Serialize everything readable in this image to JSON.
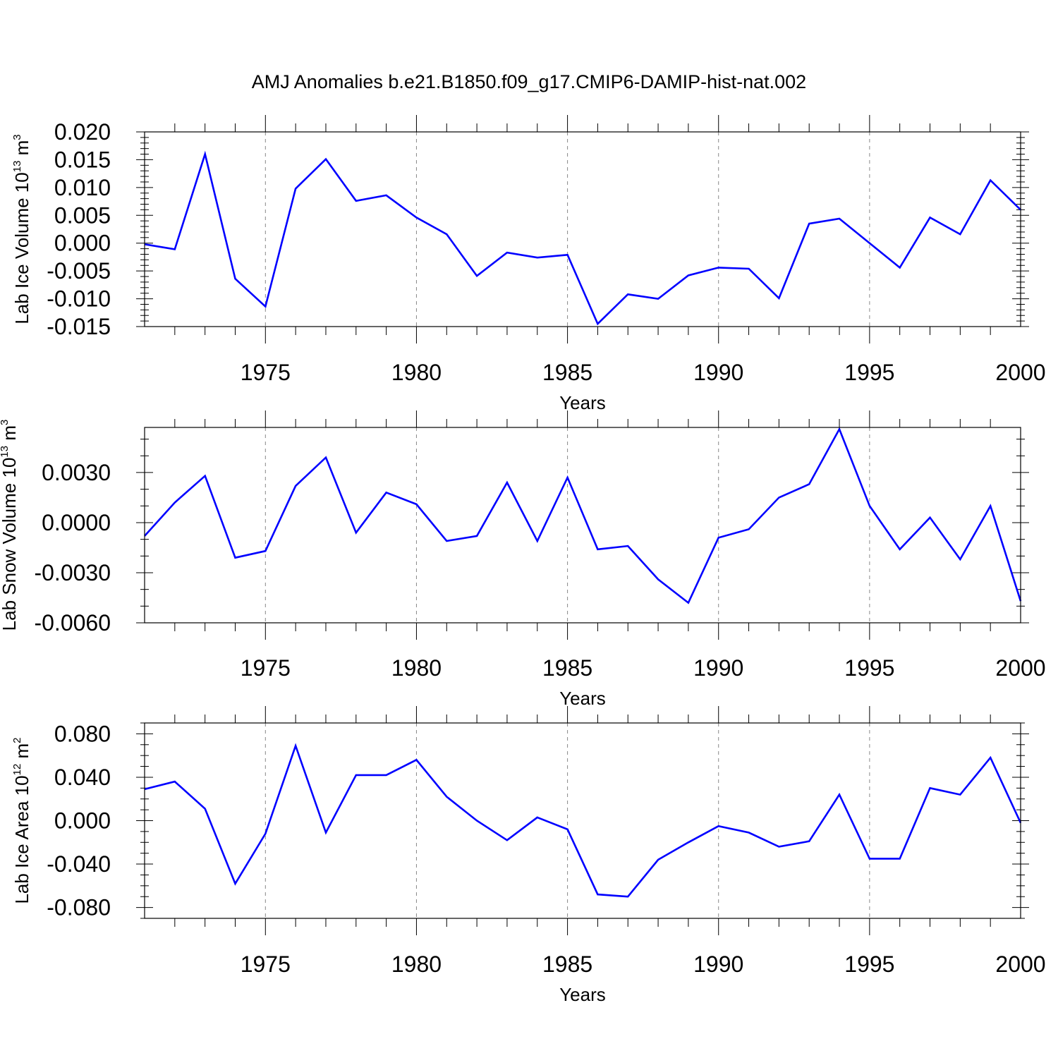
{
  "title": "AMJ Anomalies b.e21.B1850.f09_g17.CMIP6-DAMIP-hist-nat.002",
  "colors": {
    "line": "#0000ff",
    "axis": "#000000",
    "grid": "#888888",
    "background": "#ffffff"
  },
  "chart_data": [
    {
      "type": "line",
      "title": "",
      "ylabel": {
        "main": "Lab Ice Volume 10",
        "sup": "13",
        "unit": " m",
        "unit_sup": "3"
      },
      "xlabel": "Years",
      "xlim": [
        1971,
        2000
      ],
      "ylim": [
        -0.015,
        0.02
      ],
      "yticks": [
        -0.015,
        -0.01,
        -0.005,
        0.0,
        0.005,
        0.01,
        0.015,
        0.02
      ],
      "ytick_labels": [
        "-0.015",
        "-0.010",
        "-0.005",
        "0.000",
        "0.005",
        "0.010",
        "0.015",
        "0.020"
      ],
      "yminor_step": 0.001,
      "xticks": [
        1975,
        1980,
        1985,
        1990,
        1995,
        2000
      ],
      "xtick_labels": [
        "1975",
        "1980",
        "1985",
        "1990",
        "1995",
        "2000"
      ],
      "x": [
        1971,
        1972,
        1973,
        1974,
        1975,
        1976,
        1977,
        1978,
        1979,
        1980,
        1981,
        1982,
        1983,
        1984,
        1985,
        1986,
        1987,
        1988,
        1989,
        1990,
        1991,
        1992,
        1993,
        1994,
        1995,
        1996,
        1997,
        1998,
        1999,
        2000
      ],
      "series": [
        {
          "name": "Lab Ice Volume",
          "values": [
            -0.0002,
            -0.0011,
            0.016,
            -0.0064,
            -0.0114,
            0.0098,
            0.0151,
            0.0076,
            0.0086,
            0.0046,
            0.0016,
            -0.0059,
            -0.0017,
            -0.0026,
            -0.0021,
            -0.0145,
            -0.0092,
            -0.01,
            -0.0058,
            -0.0044,
            -0.0046,
            -0.0099,
            0.0035,
            0.0044,
            0.0,
            -0.0044,
            0.0046,
            0.0016,
            0.0113,
            0.006
          ]
        }
      ]
    },
    {
      "type": "line",
      "title": "",
      "ylabel": {
        "main": "Lab Snow Volume 10",
        "sup": "13",
        "unit": " m",
        "unit_sup": "3"
      },
      "xlabel": "Years",
      "xlim": [
        1971,
        2000
      ],
      "ylim": [
        -0.006,
        0.0057
      ],
      "yticks": [
        -0.006,
        -0.003,
        0.0,
        0.003
      ],
      "ytick_labels": [
        "-0.0060",
        "-0.0030",
        "0.0000",
        "0.0030"
      ],
      "yminor_step": 0.001,
      "xticks": [
        1975,
        1980,
        1985,
        1990,
        1995,
        2000
      ],
      "xtick_labels": [
        "1975",
        "1980",
        "1985",
        "1990",
        "1995",
        "2000"
      ],
      "x": [
        1971,
        1972,
        1973,
        1974,
        1975,
        1976,
        1977,
        1978,
        1979,
        1980,
        1981,
        1982,
        1983,
        1984,
        1985,
        1986,
        1987,
        1988,
        1989,
        1990,
        1991,
        1992,
        1993,
        1994,
        1995,
        1996,
        1997,
        1998,
        1999,
        2000
      ],
      "series": [
        {
          "name": "Lab Snow Volume",
          "values": [
            -0.0008,
            0.0012,
            0.0028,
            -0.0021,
            -0.0017,
            0.0022,
            0.0039,
            -0.0006,
            0.0018,
            0.0011,
            -0.0011,
            -0.0008,
            0.0024,
            -0.0011,
            0.0027,
            -0.0016,
            -0.0014,
            -0.0034,
            -0.0048,
            -0.0009,
            -0.0004,
            0.0015,
            0.0023,
            0.0056,
            0.001,
            -0.0016,
            0.0003,
            -0.0022,
            0.001,
            -0.0047
          ]
        }
      ]
    },
    {
      "type": "line",
      "title": "",
      "ylabel": {
        "main": "Lab Ice Area 10",
        "sup": "12",
        "unit": " m",
        "unit_sup": "2"
      },
      "xlabel": "Years",
      "xlim": [
        1971,
        2000
      ],
      "ylim": [
        -0.09,
        0.09
      ],
      "yticks": [
        -0.08,
        -0.04,
        0.0,
        0.04,
        0.08
      ],
      "ytick_labels": [
        "-0.080",
        "-0.040",
        "0.000",
        "0.040",
        "0.080"
      ],
      "yminor_step": 0.01,
      "xticks": [
        1975,
        1980,
        1985,
        1990,
        1995,
        2000
      ],
      "xtick_labels": [
        "1975",
        "1980",
        "1985",
        "1990",
        "1995",
        "2000"
      ],
      "x": [
        1971,
        1972,
        1973,
        1974,
        1975,
        1976,
        1977,
        1978,
        1979,
        1980,
        1981,
        1982,
        1983,
        1984,
        1985,
        1986,
        1987,
        1988,
        1989,
        1990,
        1991,
        1992,
        1993,
        1994,
        1995,
        1996,
        1997,
        1998,
        1999,
        2000
      ],
      "series": [
        {
          "name": "Lab Ice Area",
          "values": [
            0.029,
            0.036,
            0.011,
            -0.058,
            -0.012,
            0.069,
            -0.011,
            0.042,
            0.042,
            0.056,
            0.022,
            0.0,
            -0.018,
            0.003,
            -0.008,
            -0.068,
            -0.07,
            -0.036,
            -0.02,
            -0.005,
            -0.011,
            -0.024,
            -0.019,
            0.024,
            -0.035,
            -0.035,
            0.03,
            0.024,
            0.058,
            -0.002
          ]
        }
      ]
    }
  ]
}
